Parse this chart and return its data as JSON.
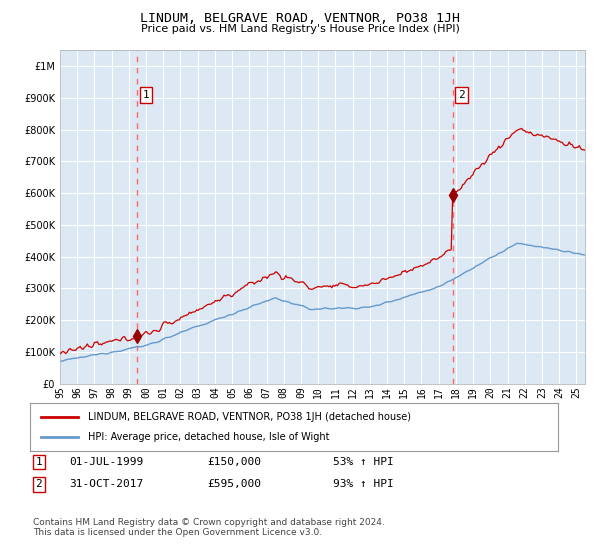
{
  "title": "LINDUM, BELGRAVE ROAD, VENTNOR, PO38 1JH",
  "subtitle": "Price paid vs. HM Land Registry's House Price Index (HPI)",
  "legend_line1": "LINDUM, BELGRAVE ROAD, VENTNOR, PO38 1JH (detached house)",
  "legend_line2": "HPI: Average price, detached house, Isle of Wight",
  "annotation1_date": "01-JUL-1999",
  "annotation1_price": "£150,000",
  "annotation1_hpi": "53% ↑ HPI",
  "annotation2_date": "31-OCT-2017",
  "annotation2_price": "£595,000",
  "annotation2_hpi": "93% ↑ HPI",
  "footer": "Contains HM Land Registry data © Crown copyright and database right 2024.\nThis data is licensed under the Open Government Licence v3.0.",
  "bg_color": "#dce9f5",
  "red_line_color": "#cc0000",
  "blue_line_color": "#6699cc",
  "marker_color": "#990000",
  "vline_color": "#ff6666",
  "grid_color": "#ffffff",
  "ylim_max": 1050000,
  "sale1_year": 1999.5,
  "sale1_price": 150000,
  "sale2_year": 2017.83,
  "sale2_price": 595000,
  "start_year": 1995.0,
  "end_year": 2025.5
}
